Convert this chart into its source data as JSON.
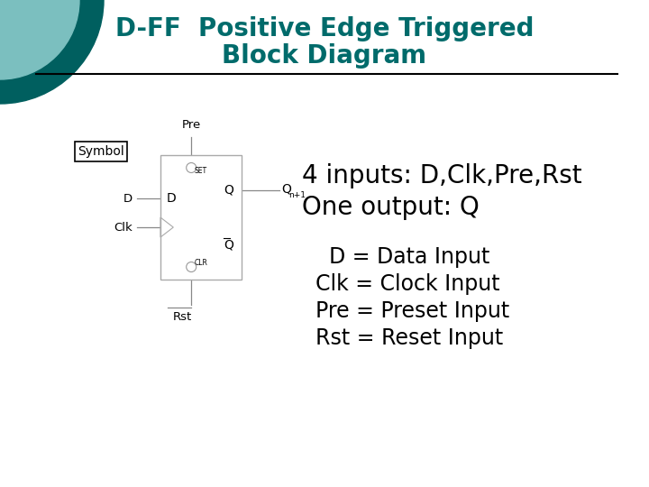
{
  "title_line1": "D-FF  Positive Edge Triggered",
  "title_line2": "Block Diagram",
  "title_color": "#006b6b",
  "title_fontsize": 20,
  "bg_color": "#ffffff",
  "circle_outer_color": "#005f5f",
  "circle_inner_color": "#7bbfbf",
  "symbol_label": "Symbol",
  "pre_label": "Pre",
  "rst_label": "Rst",
  "set_label": "SET",
  "clr_label": "CLR",
  "d_label": "D",
  "q_label": "Q",
  "qn1_sub": "n+1",
  "text_main1": "4 inputs: D,Clk,Pre,Rst",
  "text_main2": "One output: Q",
  "desc_lines": [
    "  D = Data Input",
    "Clk = Clock Input",
    "Pre = Preset Input",
    "Rst = Reset Input"
  ],
  "main_fontsize": 20,
  "desc_fontsize": 17,
  "diagram_fontsize": 10
}
